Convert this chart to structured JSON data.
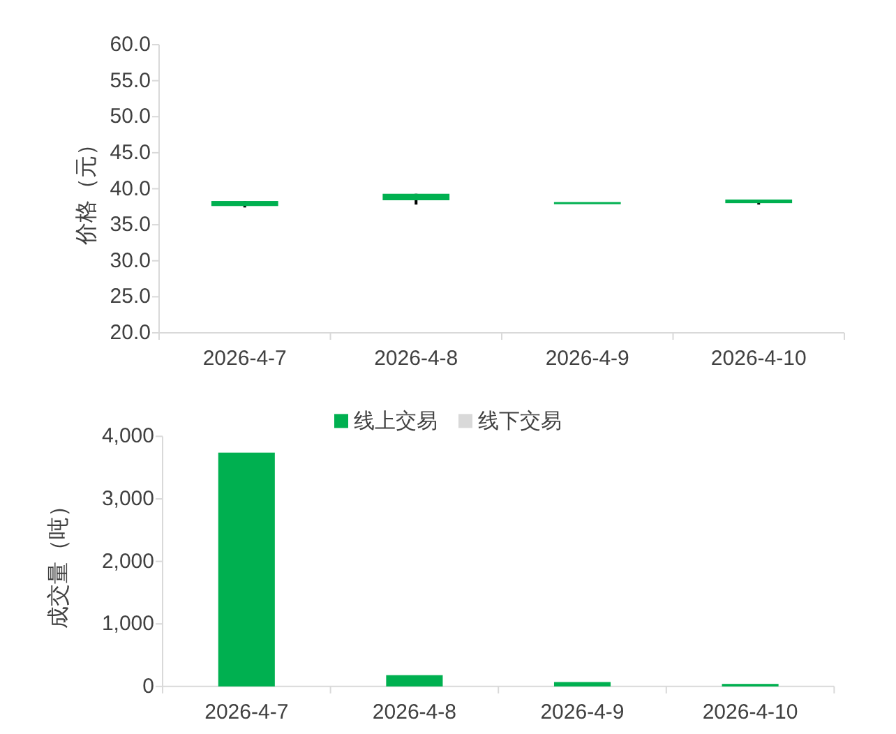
{
  "chart_data": [
    {
      "type": "candlestick",
      "ylabel": "价格（元）",
      "categories": [
        "2026-4-7",
        "2026-4-8",
        "2026-4-9",
        "2026-4-10"
      ],
      "ohlc": [
        [
          38.3,
          38.3,
          37.4,
          37.6
        ],
        [
          39.3,
          39.3,
          37.8,
          38.4
        ],
        [
          38.0,
          38.0,
          38.0,
          38.0
        ],
        [
          38.5,
          38.5,
          37.8,
          38.0
        ]
      ],
      "color": "#00b050",
      "ylim": [
        20,
        60
      ],
      "yticks": [
        {
          "value": 20,
          "label": "20.0"
        },
        {
          "value": 25,
          "label": "25.0"
        },
        {
          "value": 30,
          "label": "30.0"
        },
        {
          "value": 35,
          "label": "35.0"
        },
        {
          "value": 40,
          "label": "40.0"
        },
        {
          "value": 45,
          "label": "45.0"
        },
        {
          "value": 50,
          "label": "50.0"
        },
        {
          "value": 55,
          "label": "55.0"
        },
        {
          "value": 60,
          "label": "60.0"
        }
      ]
    },
    {
      "type": "bar",
      "ylabel": "成交量（吨）",
      "categories": [
        "2026-4-7",
        "2026-4-8",
        "2026-4-9",
        "2026-4-10"
      ],
      "series": [
        {
          "name": "线上交易",
          "color": "#00b050",
          "values": [
            3740,
            180,
            70,
            40
          ]
        },
        {
          "name": "线下交易",
          "color": "#d9d9d9",
          "values": [
            null,
            null,
            null,
            null
          ]
        }
      ],
      "stacked": true,
      "legend": "top",
      "ylim": [
        0,
        4000
      ],
      "yticks": [
        0,
        {
          "value": 1000,
          "label": "1,000"
        },
        {
          "value": 2000,
          "label": "2,000"
        },
        {
          "value": 3000,
          "label": "3,000"
        },
        {
          "value": 4000,
          "label": "4,000"
        }
      ]
    }
  ]
}
